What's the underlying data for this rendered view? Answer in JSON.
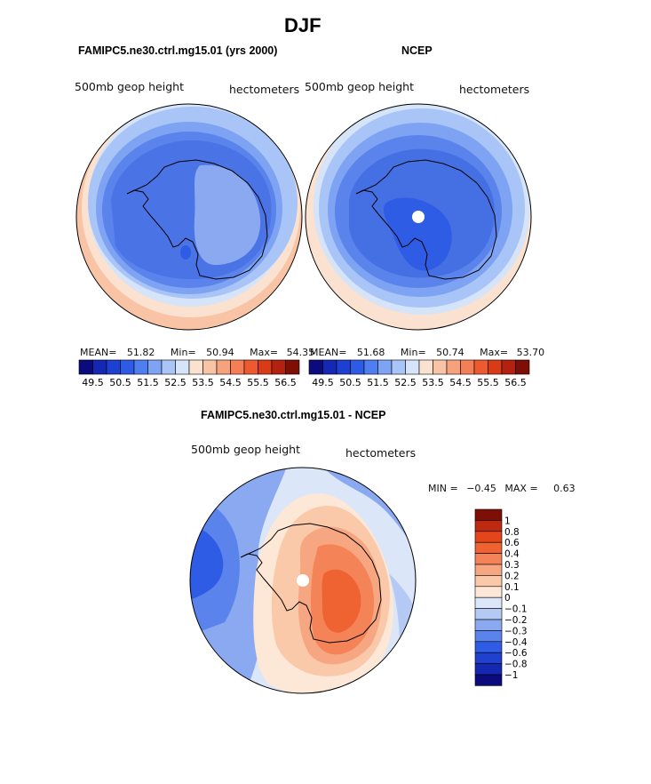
{
  "figure": {
    "title": "DJF",
    "top_left_title": "FAMIPC5.ne30.ctrl.mg15.01 (yrs 2000)",
    "top_right_title": "NCEP",
    "bottom_title": "FAMIPC5.ne30.ctrl.mg15.01 - NCEP"
  },
  "panel_left": {
    "left_label": "500mb  geop  height",
    "right_label": "hectometers",
    "mean_label": "MEAN=",
    "mean_value": "51.82",
    "min_label": "Min=",
    "min_value": "50.94",
    "max_label": "Max=",
    "max_value": "54.35"
  },
  "panel_right": {
    "left_label": "500mb  geop  height",
    "right_label": "hectometers",
    "mean_label": "MEAN=",
    "mean_value": "51.68",
    "min_label": "Min=",
    "min_value": "50.74",
    "max_label": "Max=",
    "max_value": "53.70"
  },
  "panel_diff": {
    "left_label": "500mb  geop  height",
    "right_label": "hectometers",
    "min_label": "MIN =",
    "min_value": "−0.45",
    "max_label": "MAX =",
    "max_value": "0.63"
  },
  "colorbar_abs": {
    "colors": [
      "#0b0b7d",
      "#1428b4",
      "#1e40d2",
      "#2d5be6",
      "#4f7ef0",
      "#7ea3f3",
      "#a9c4f6",
      "#d5e4f8",
      "#fbe1cf",
      "#f8c4a5",
      "#f5a27d",
      "#f47e55",
      "#ee5a30",
      "#d93a17",
      "#b32210",
      "#7d0f07"
    ],
    "tick_labels": [
      "49.5",
      "50.5",
      "51.5",
      "52.5",
      "53.5",
      "54.5",
      "55.5",
      "56.5"
    ]
  },
  "colorbar_diff": {
    "colors": [
      "#0b0b7d",
      "#1428b4",
      "#2040cf",
      "#2f5ce4",
      "#5a83ec",
      "#8aa9f0",
      "#b4c9f4",
      "#dbe6f8",
      "#fde7d6",
      "#f9c9aa",
      "#f6a680",
      "#f48458",
      "#ef6232",
      "#e4451a",
      "#bd2a10",
      "#7d0f07"
    ],
    "tick_labels": [
      "1",
      "0.8",
      "0.6",
      "0.4",
      "0.3",
      "0.2",
      "0.1",
      "0",
      "−0.1",
      "−0.2",
      "−0.3",
      "−0.4",
      "−0.6",
      "−0.8",
      "−1"
    ]
  }
}
